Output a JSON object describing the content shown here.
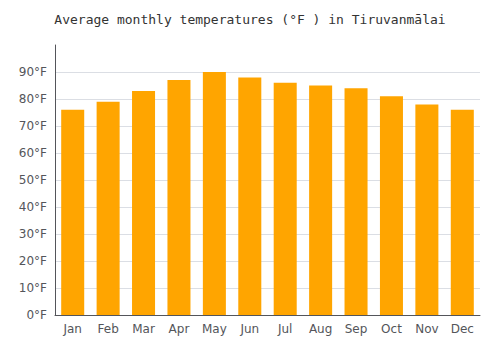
{
  "chart_data": {
    "type": "bar",
    "title": "Average monthly temperatures (°F ) in Tiruvanmālai",
    "categories": [
      "Jan",
      "Feb",
      "Mar",
      "Apr",
      "May",
      "Jun",
      "Jul",
      "Aug",
      "Sep",
      "Oct",
      "Nov",
      "Dec"
    ],
    "values": [
      76,
      79,
      83,
      87,
      90,
      88,
      86,
      85,
      84,
      81,
      78,
      76
    ],
    "color": "#FFA500",
    "ylim": [
      0,
      100
    ],
    "yticks": [
      {
        "value": 0,
        "label": "0°F"
      },
      {
        "value": 10,
        "label": "10°F"
      },
      {
        "value": 20,
        "label": "20°F"
      },
      {
        "value": 30,
        "label": "30°F"
      },
      {
        "value": 40,
        "label": "40°F"
      },
      {
        "value": 50,
        "label": "50°F"
      },
      {
        "value": 60,
        "label": "60°F"
      },
      {
        "value": 70,
        "label": "70°F"
      },
      {
        "value": 80,
        "label": "80°F"
      },
      {
        "value": 90,
        "label": "90°F"
      }
    ],
    "grid": true
  }
}
